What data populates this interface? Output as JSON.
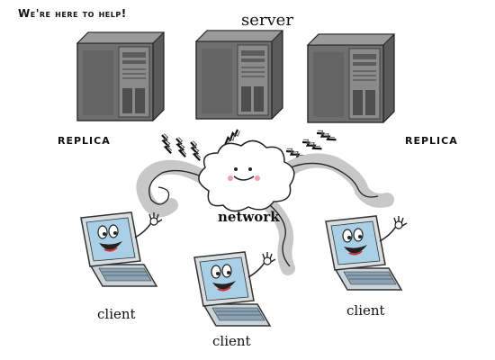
{
  "tagline": "We're here to help!",
  "labels": {
    "server": "server",
    "replica_left": "REPLICA",
    "replica_right": "REPLICA",
    "network": "network",
    "client_left": "client",
    "client_middle": "client",
    "client_right": "client"
  },
  "colors": {
    "tower_body": "#6f6f6f",
    "tower_front": "#8a8a8a",
    "cloud_fill": "#ffffff",
    "cloud_glow": "#cfd6e8",
    "laptop_screen": "#a9cfe6",
    "laptop_body": "#c9d3da",
    "cable_shadow": "#c8c8c8"
  },
  "icons": [
    "server-tower-icon",
    "cloud-face-icon",
    "laptop-character-icon",
    "lightning-icon"
  ]
}
